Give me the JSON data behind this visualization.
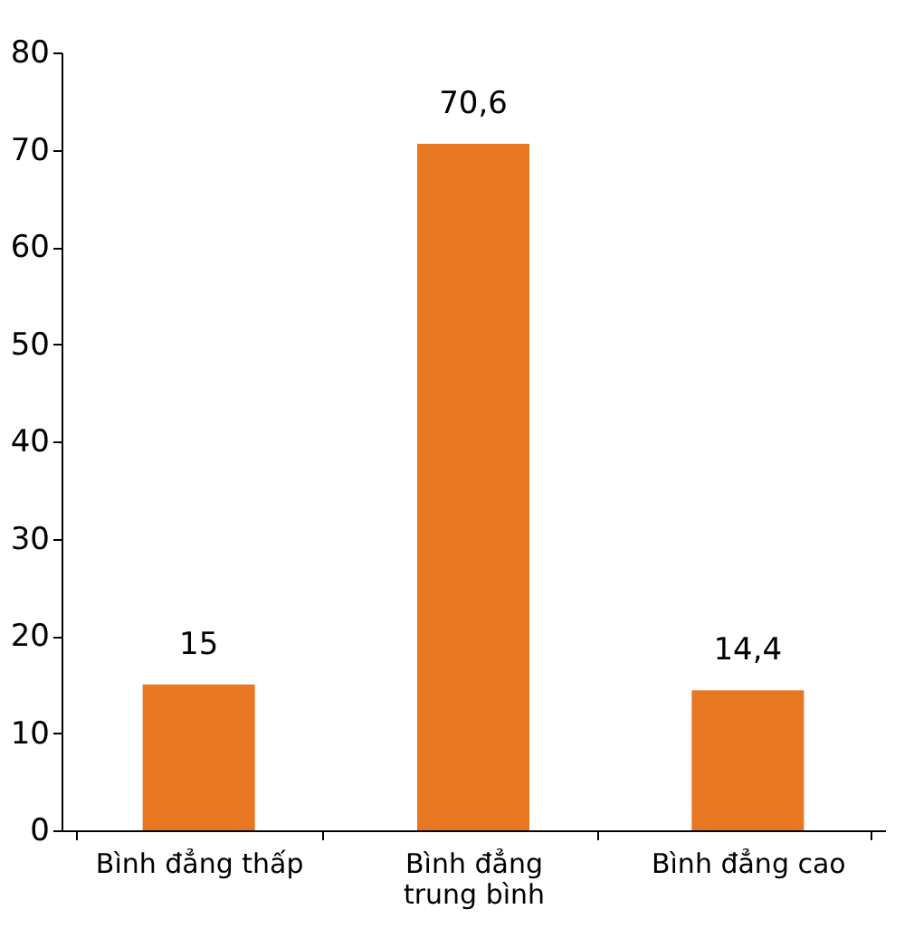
{
  "chart_data": {
    "type": "bar",
    "categories": [
      "Bình đẳng thấp",
      "Bình đẳng trung bình",
      "Bình đẳng cao"
    ],
    "values": [
      15,
      70.6,
      14.4
    ],
    "value_labels": [
      "15",
      "70,6",
      "14,4"
    ],
    "color": "#e87722",
    "ylim": [
      0,
      80
    ],
    "yticks": [
      0,
      10,
      20,
      30,
      40,
      50,
      60,
      70,
      80
    ],
    "grid": false
  }
}
